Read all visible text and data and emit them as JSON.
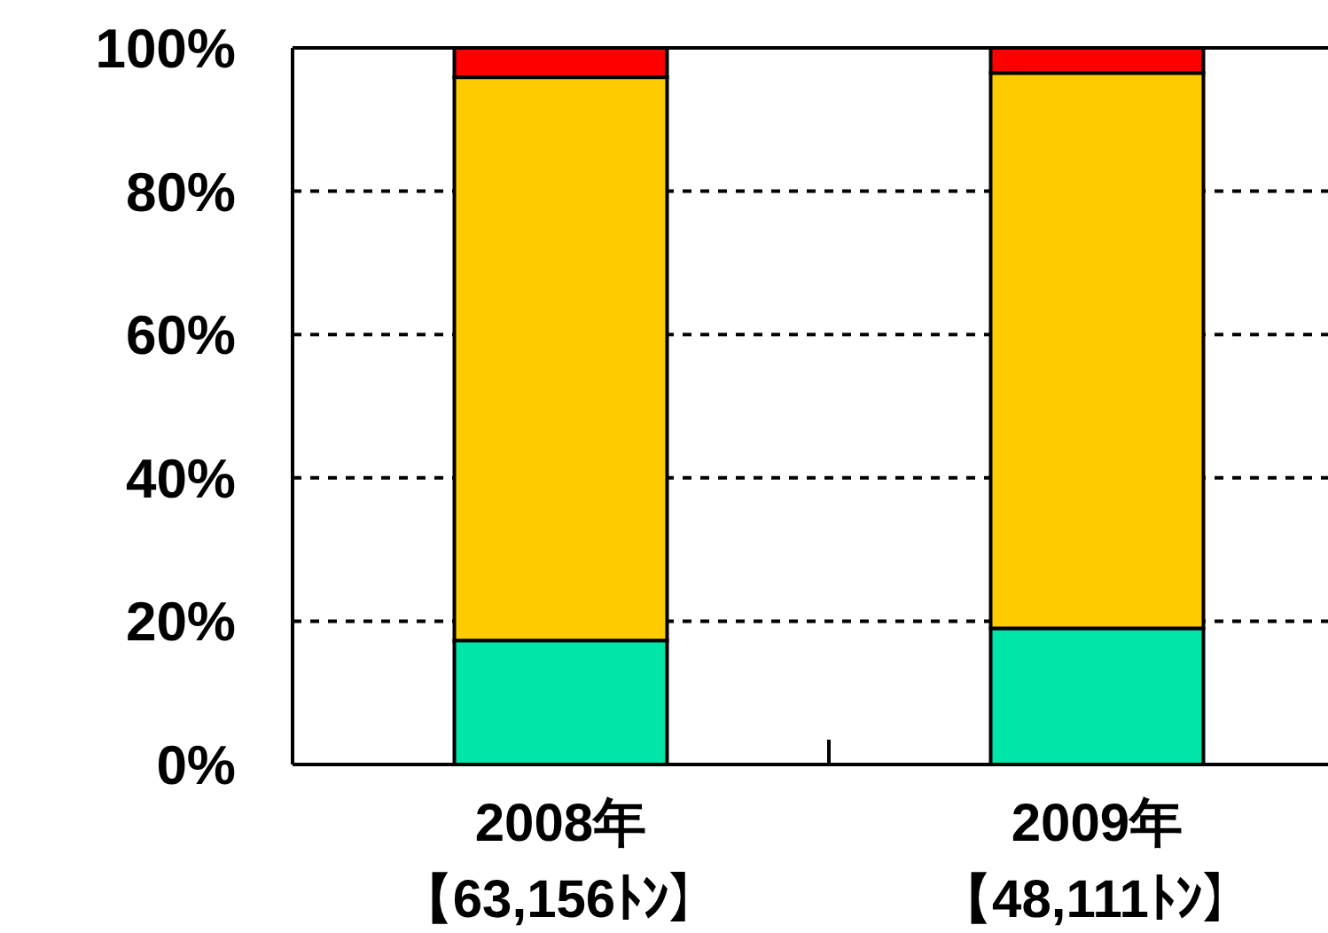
{
  "chart_data": {
    "type": "bar",
    "stacked": true,
    "categories": [
      "2008年【63,156ﾄﾝ】",
      "2009年【48,111ﾄﾝ】"
    ],
    "series": [
      {
        "color": "#00e5a8",
        "values": [
          17.3,
          19.0
        ]
      },
      {
        "color": "#ffcc00",
        "values": [
          78.6,
          77.5
        ]
      },
      {
        "color": "#ff0000",
        "values": [
          4.1,
          3.5
        ]
      }
    ],
    "ylim": [
      0,
      100
    ],
    "yticks": [
      {
        "value": 0,
        "label": "0%"
      },
      {
        "value": 20,
        "label": "20%"
      },
      {
        "value": 40,
        "label": "40%"
      },
      {
        "value": 60,
        "label": "60%"
      },
      {
        "value": 80,
        "label": "80%"
      },
      {
        "value": 100,
        "label": "100%"
      }
    ],
    "grid": "y"
  }
}
